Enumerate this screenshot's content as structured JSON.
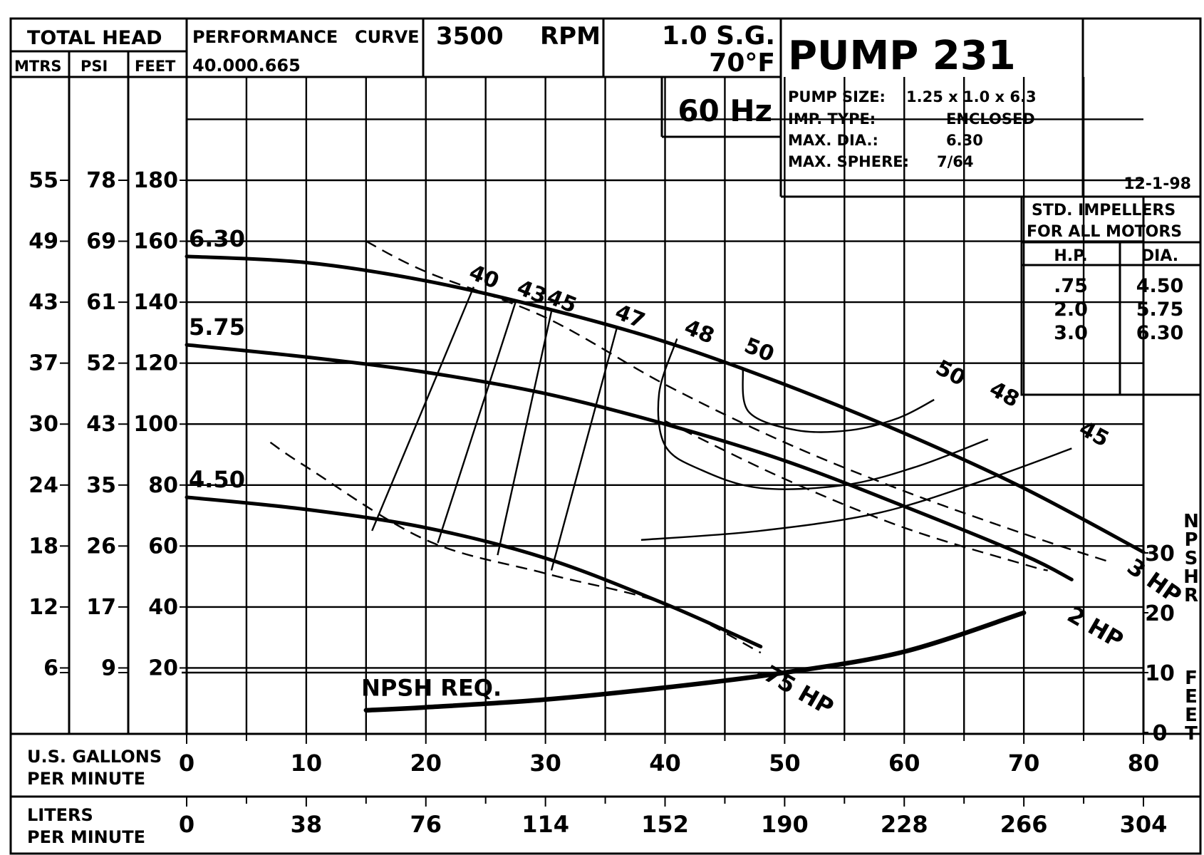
{
  "header": {
    "total_head": "TOTAL HEAD",
    "col_mtrs": "MTRS",
    "col_psi": "PSI",
    "col_feet": "FEET",
    "perf_label": "PERFORMANCE",
    "curve_label": "CURVE",
    "curve_number": "40.000.665",
    "speed": "3500",
    "speed_unit": "RPM",
    "sg": "1.0 S.G.",
    "temp": "70°F",
    "hz": "60 Hz",
    "pump_title": "PUMP 231",
    "spec_labels": [
      "PUMP SIZE:",
      "IMP. TYPE:",
      "MAX. DIA.:",
      "MAX. SPHERE:"
    ],
    "spec_values": [
      "1.25 x 1.0 x 6.3",
      "ENCLOSED",
      "6.30",
      "7/64"
    ],
    "date": "12-1-98"
  },
  "impeller_table": {
    "title1": "STD. IMPELLERS",
    "title2": "FOR ALL MOTORS",
    "col_hp": "H.P.",
    "col_dia": "DIA.",
    "hp": [
      ".75",
      "2.0",
      "3.0"
    ],
    "dia": [
      "4.50",
      "5.75",
      "6.30"
    ]
  },
  "axes": {
    "mtrs_ticks": [
      "55",
      "49",
      "43",
      "37",
      "30",
      "24",
      "18",
      "12",
      "6"
    ],
    "psi_ticks": [
      "78",
      "69",
      "61",
      "52",
      "43",
      "35",
      "26",
      "17",
      "9"
    ],
    "feet_ticks": [
      "180",
      "160",
      "140",
      "120",
      "100",
      "80",
      "60",
      "40",
      "20"
    ],
    "gpm_label_1": "U.S.   GALLONS",
    "gpm_label_2": "PER   MINUTE",
    "gpm_ticks": [
      "0",
      "10",
      "20",
      "30",
      "40",
      "50",
      "60",
      "70",
      "80"
    ],
    "lpm_label_1": "LITERS",
    "lpm_label_2": "PER   MINUTE",
    "lpm_ticks": [
      "0",
      "38",
      "76",
      "114",
      "152",
      "190",
      "228",
      "266",
      "304"
    ],
    "npshr_ticks": [
      "30",
      "20",
      "10",
      "0"
    ],
    "npshr_label": "NPSHR",
    "feet_label": "FEET"
  },
  "chart_data": {
    "type": "line",
    "x_unit": "U.S. gallons per minute",
    "y_unit": "feet total head",
    "xlim": [
      0,
      80
    ],
    "ylim": [
      0,
      180
    ],
    "npshr_ylim": [
      0,
      30
    ],
    "grid": true,
    "series": [
      {
        "name": "6.30",
        "x": [
          0,
          10,
          20,
          30,
          40,
          50,
          60,
          70,
          80
        ],
        "y": [
          155,
          153,
          147,
          138,
          127,
          113,
          97,
          79,
          58
        ]
      },
      {
        "name": "5.75",
        "x": [
          0,
          10,
          20,
          30,
          40,
          50,
          60,
          70,
          74
        ],
        "y": [
          126,
          122,
          117,
          110,
          100,
          88,
          73,
          57,
          49
        ]
      },
      {
        "name": "4.50",
        "x": [
          0,
          10,
          20,
          30,
          40,
          48
        ],
        "y": [
          76,
          72,
          66,
          56,
          41,
          27
        ]
      },
      {
        "name": "NPSH REQ.",
        "x": [
          15,
          20,
          30,
          40,
          50,
          60,
          70
        ],
        "y": [
          3.7,
          4.2,
          5.5,
          7.5,
          10,
          13.5,
          20
        ]
      }
    ],
    "efficiency_labels": [
      "40",
      "43",
      "45",
      "47",
      "48",
      "50",
      "50",
      "48",
      "45"
    ],
    "motor_limits": [
      {
        "name": "3 HP",
        "x": [
          15,
          20,
          30,
          40,
          50,
          60,
          70,
          77
        ],
        "y": [
          160,
          150,
          135,
          113,
          94,
          78,
          64,
          55
        ]
      },
      {
        "name": "2 HP",
        "x": [
          40,
          50,
          60,
          70,
          72
        ],
        "y": [
          101,
          82,
          66,
          54,
          52
        ]
      },
      {
        "name": ".75 HP",
        "x": [
          7,
          10,
          20,
          30,
          40,
          48
        ],
        "y": [
          94,
          86,
          62,
          51,
          41,
          25
        ]
      }
    ]
  }
}
